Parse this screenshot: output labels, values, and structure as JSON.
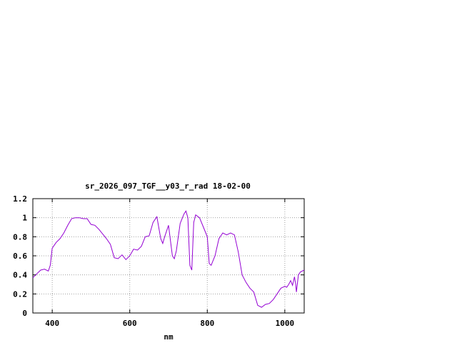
{
  "chart_data": {
    "type": "line",
    "title": "sr_2026_097_TGF__y03_r_rad 18-02-00",
    "xlabel": "nm",
    "ylabel": "",
    "xlim": [
      350,
      1050
    ],
    "ylim": [
      0,
      1.2
    ],
    "x_ticks": [
      "400",
      "600",
      "800",
      "1000"
    ],
    "x_tick_values": [
      400,
      600,
      800,
      1000
    ],
    "y_ticks": [
      "0",
      "0.2",
      "0.4",
      "0.6",
      "0.8",
      "1",
      "1.2"
    ],
    "y_tick_values": [
      0,
      0.2,
      0.4,
      0.6,
      0.8,
      1,
      1.2
    ],
    "grid": true,
    "line_color": "#9400d3",
    "series": [
      {
        "x": [
          350,
          360,
          370,
          380,
          390,
          395,
          400,
          410,
          420,
          430,
          440,
          450,
          460,
          470,
          480,
          490,
          500,
          510,
          520,
          530,
          540,
          550,
          560,
          570,
          580,
          590,
          600,
          610,
          620,
          630,
          640,
          650,
          660,
          670,
          680,
          685,
          690,
          700,
          710,
          715,
          720,
          730,
          740,
          745,
          750,
          755,
          760,
          765,
          770,
          780,
          790,
          800,
          805,
          810,
          820,
          830,
          840,
          850,
          860,
          870,
          880,
          890,
          900,
          910,
          920,
          930,
          940,
          950,
          960,
          970,
          980,
          990,
          1000,
          1005,
          1010,
          1015,
          1020,
          1025,
          1028,
          1030,
          1035,
          1040,
          1050
        ],
        "y": [
          0.37,
          0.41,
          0.45,
          0.46,
          0.44,
          0.5,
          0.68,
          0.74,
          0.78,
          0.84,
          0.92,
          0.99,
          1.0,
          1.0,
          0.99,
          0.99,
          0.93,
          0.92,
          0.88,
          0.83,
          0.78,
          0.72,
          0.58,
          0.57,
          0.61,
          0.56,
          0.6,
          0.67,
          0.66,
          0.7,
          0.8,
          0.81,
          0.95,
          1.01,
          0.78,
          0.73,
          0.8,
          0.92,
          0.6,
          0.57,
          0.65,
          0.94,
          1.04,
          1.07,
          1.0,
          0.5,
          0.45,
          0.95,
          1.03,
          1.0,
          0.9,
          0.8,
          0.52,
          0.5,
          0.6,
          0.78,
          0.84,
          0.82,
          0.84,
          0.82,
          0.64,
          0.4,
          0.32,
          0.26,
          0.22,
          0.08,
          0.06,
          0.09,
          0.1,
          0.14,
          0.2,
          0.26,
          0.28,
          0.27,
          0.3,
          0.34,
          0.29,
          0.38,
          0.3,
          0.22,
          0.4,
          0.43,
          0.45
        ]
      }
    ]
  }
}
